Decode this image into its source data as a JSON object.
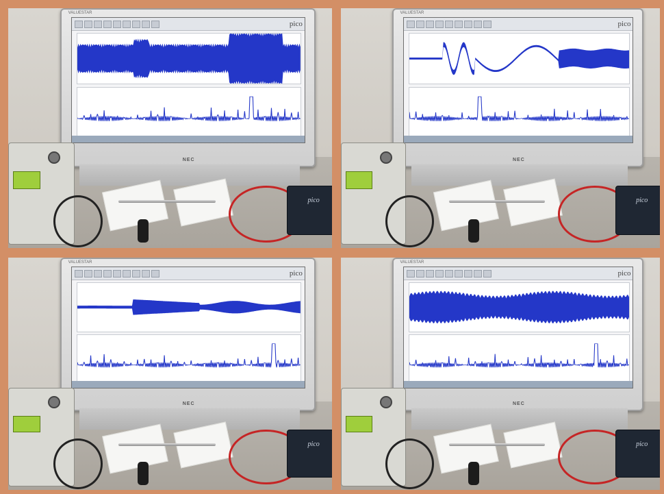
{
  "colors": {
    "frame": "#d38f66",
    "signal": "#2437c8",
    "screen": "#f4f4f6"
  },
  "panels": [
    {
      "id": "top-left",
      "monitor_label": "VALUESTAR",
      "brand": "NEC",
      "software": "pico",
      "top_wave": "bursts",
      "bottom_wave": "spectrum"
    },
    {
      "id": "top-right",
      "monitor_label": "VALUESTAR",
      "brand": "NEC",
      "software": "pico",
      "top_wave": "sweep",
      "bottom_wave": "spectrum"
    },
    {
      "id": "bottom-left",
      "monitor_label": "VALUESTAR",
      "brand": "NEC",
      "software": "pico",
      "top_wave": "decay",
      "bottom_wave": "spectrum"
    },
    {
      "id": "bottom-right",
      "monitor_label": "VALUESTAR",
      "brand": "NEC",
      "software": "pico",
      "top_wave": "steady",
      "bottom_wave": "spectrum"
    }
  ],
  "scope_logo": "pico"
}
